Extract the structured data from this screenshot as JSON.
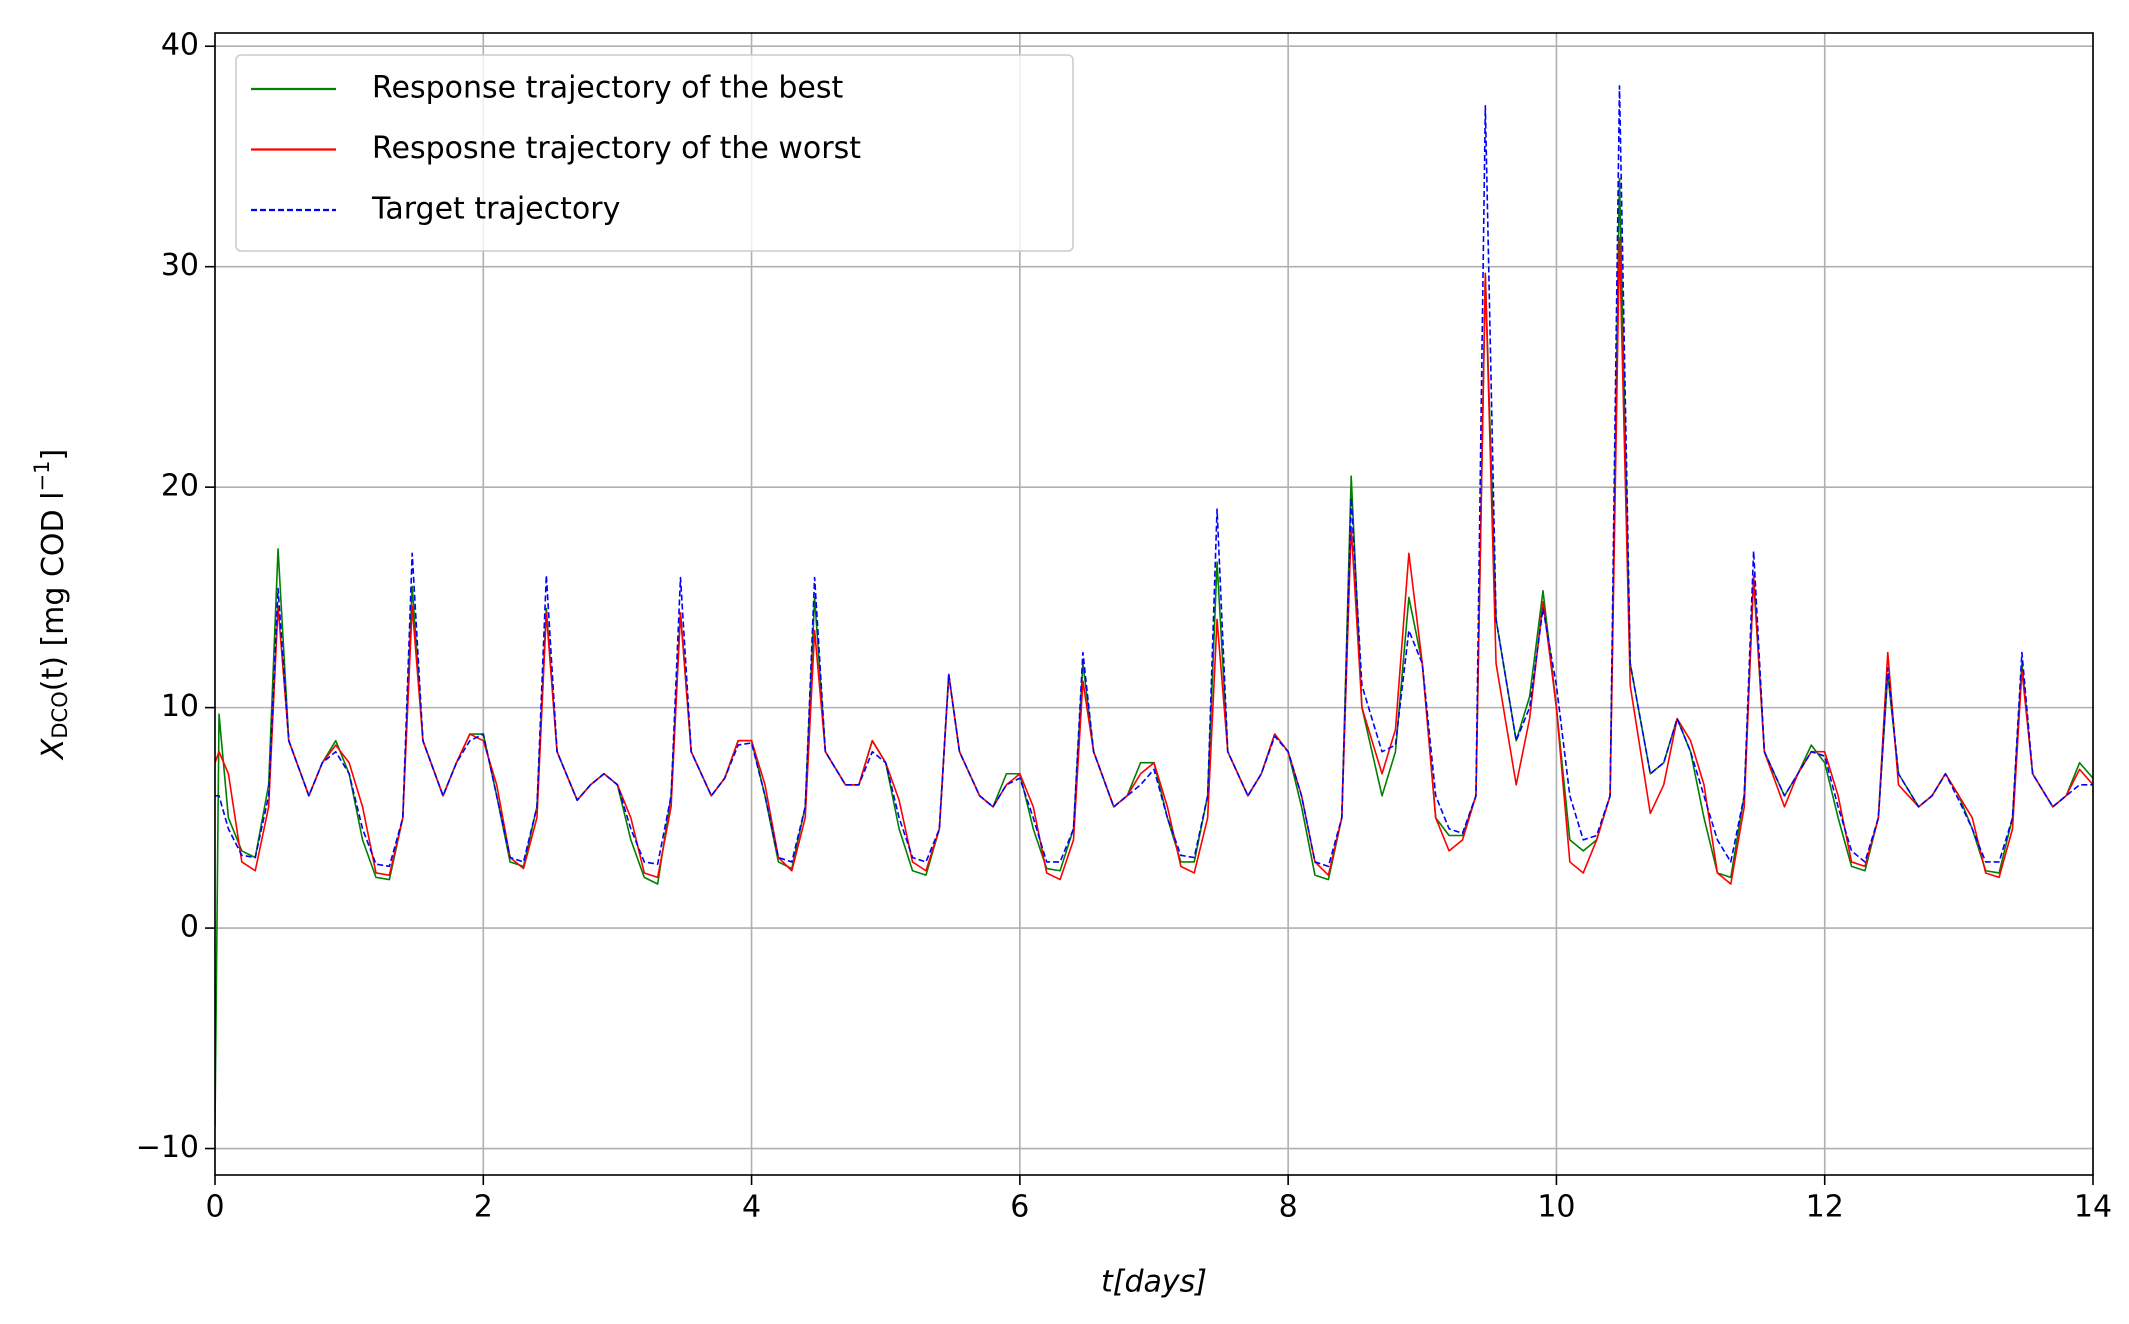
{
  "chart_data": {
    "type": "line",
    "xlabel": "t[days]",
    "ylabel": {
      "main": "X",
      "sub": "DCO",
      "rest": "(t) [mg COD l",
      "sup": "−1",
      "end": "]"
    },
    "xlim": [
      0,
      14
    ],
    "ylim": [
      -11.2,
      40.6
    ],
    "xticks": [
      0,
      2,
      4,
      6,
      8,
      10,
      12,
      14
    ],
    "yticks": [
      {
        "value": -10,
        "label": "−10"
      },
      0,
      10,
      20,
      30,
      40
    ],
    "grid": true,
    "legend": "upper left",
    "x": [
      0,
      0.03,
      0.1,
      0.2,
      0.3,
      0.4,
      0.47,
      0.55,
      0.7,
      0.8,
      0.9,
      1,
      1.1,
      1.2,
      1.3,
      1.4,
      1.47,
      1.55,
      1.7,
      1.8,
      1.9,
      2,
      2.1,
      2.2,
      2.3,
      2.4,
      2.47,
      2.55,
      2.7,
      2.8,
      2.9,
      3,
      3.1,
      3.2,
      3.3,
      3.4,
      3.47,
      3.55,
      3.7,
      3.8,
      3.9,
      4,
      4.1,
      4.2,
      4.3,
      4.4,
      4.47,
      4.55,
      4.7,
      4.8,
      4.9,
      5,
      5.1,
      5.2,
      5.3,
      5.4,
      5.47,
      5.55,
      5.7,
      5.8,
      5.9,
      6,
      6.1,
      6.2,
      6.3,
      6.4,
      6.47,
      6.55,
      6.7,
      6.8,
      6.9,
      7,
      7.1,
      7.2,
      7.3,
      7.4,
      7.47,
      7.55,
      7.7,
      7.8,
      7.9,
      8,
      8.1,
      8.2,
      8.3,
      8.4,
      8.47,
      8.55,
      8.7,
      8.8,
      8.9,
      9,
      9.1,
      9.2,
      9.3,
      9.4,
      9.47,
      9.55,
      9.7,
      9.8,
      9.9,
      10,
      10.1,
      10.2,
      10.3,
      10.4,
      10.47,
      10.55,
      10.7,
      10.8,
      10.9,
      11,
      11.1,
      11.2,
      11.3,
      11.4,
      11.47,
      11.55,
      11.7,
      11.8,
      11.9,
      12,
      12.1,
      12.2,
      12.3,
      12.4,
      12.47,
      12.55,
      12.7,
      12.8,
      12.9,
      13,
      13.1,
      13.2,
      13.3,
      13.4,
      13.47,
      13.55,
      13.7,
      13.8,
      13.9,
      14
    ],
    "series": [
      {
        "name": "Response trajectory of the best",
        "color": "#008000",
        "linestyle": "solid",
        "values": [
          -9,
          9.7,
          5,
          3.5,
          3.2,
          6.5,
          17.2,
          8.5,
          6,
          7.5,
          8.5,
          7,
          4,
          2.3,
          2.2,
          5,
          15.5,
          8.5,
          6,
          7.5,
          8.8,
          8.8,
          6,
          3,
          2.8,
          5.5,
          14.5,
          8,
          5.8,
          6.5,
          7,
          6.5,
          4,
          2.3,
          2,
          6,
          14.3,
          8,
          6,
          6.8,
          8.5,
          8.5,
          6,
          3,
          2.7,
          5.5,
          15,
          8,
          6.5,
          6.5,
          8.5,
          7.5,
          4.5,
          2.6,
          2.4,
          4.5,
          11.5,
          8,
          6,
          5.5,
          7,
          7,
          4.5,
          2.7,
          2.6,
          4.5,
          12,
          8,
          5.5,
          6,
          7.5,
          7.5,
          5,
          3,
          3,
          6,
          16.6,
          8,
          6,
          7,
          8.8,
          8,
          5.5,
          2.4,
          2.2,
          5,
          20.5,
          10,
          6,
          8,
          15,
          12,
          5,
          4.2,
          4.2,
          6,
          29.6,
          14,
          8.5,
          10.5,
          15.3,
          10,
          4,
          3.5,
          4,
          6,
          34,
          12,
          7,
          7.5,
          9.5,
          8,
          5,
          2.5,
          2.3,
          6,
          15.8,
          8,
          6,
          7,
          8.3,
          7.5,
          5,
          2.8,
          2.6,
          5,
          11.5,
          7,
          5.5,
          6,
          7,
          6,
          4.5,
          2.6,
          2.5,
          5,
          12,
          7,
          5.5,
          6,
          7.5,
          6.8
        ]
      },
      {
        "name": "Resposne trajectory of the worst",
        "color": "#ff0000",
        "linestyle": "solid",
        "values": [
          7.5,
          8,
          7,
          3,
          2.6,
          5.5,
          14.6,
          8.5,
          6,
          7.5,
          8.3,
          7.5,
          5.5,
          2.5,
          2.4,
          5,
          14.6,
          8.5,
          6,
          7.5,
          8.8,
          8.5,
          6.5,
          3.2,
          2.7,
          5,
          14.3,
          8,
          5.8,
          6.5,
          7,
          6.5,
          5,
          2.5,
          2.3,
          5.5,
          14.3,
          8,
          6,
          6.8,
          8.5,
          8.5,
          6.5,
          3.2,
          2.6,
          5,
          13.5,
          8,
          6.5,
          6.5,
          8.5,
          7.5,
          5.8,
          3,
          2.6,
          4.5,
          11.5,
          8,
          6,
          5.5,
          6.5,
          7,
          5.5,
          2.5,
          2.2,
          4,
          11.2,
          8,
          5.5,
          6,
          7,
          7.5,
          5.5,
          2.8,
          2.5,
          5,
          14,
          8,
          6,
          7,
          8.8,
          8,
          6,
          3,
          2.4,
          5,
          18.2,
          10,
          7,
          9,
          17,
          12,
          5,
          3.5,
          4,
          6,
          29.7,
          12,
          6.5,
          9.5,
          14.8,
          10,
          3,
          2.5,
          4,
          6,
          31.3,
          11,
          5.2,
          6.5,
          9.5,
          8.5,
          6.5,
          2.5,
          2,
          5.5,
          16,
          8,
          5.5,
          7,
          8,
          8,
          6,
          3,
          2.8,
          5,
          12.5,
          6.5,
          5.5,
          6,
          7,
          6,
          5,
          2.5,
          2.3,
          4.5,
          11.7,
          7,
          5.5,
          6,
          7.2,
          6.5
        ]
      },
      {
        "name": "Target trajectory",
        "color": "#0000ff",
        "linestyle": "dashed",
        "values": [
          6,
          6,
          4.5,
          3.3,
          3.2,
          6,
          15.4,
          8.5,
          6,
          7.5,
          8,
          7,
          4.5,
          2.9,
          2.8,
          5,
          17,
          8.5,
          6,
          7.5,
          8.5,
          8.8,
          6,
          3.2,
          3,
          5.5,
          16,
          8,
          5.8,
          6.5,
          7,
          6.5,
          4.5,
          3,
          2.9,
          6,
          15.9,
          8,
          6,
          6.8,
          8.3,
          8.4,
          6,
          3.2,
          3,
          5.5,
          15.9,
          8,
          6.5,
          6.5,
          8,
          7.5,
          5,
          3.2,
          3,
          4.5,
          11.5,
          8,
          6,
          5.5,
          6.5,
          6.8,
          5,
          3,
          3,
          4.5,
          12.5,
          8,
          5.5,
          6,
          6.5,
          7.2,
          5,
          3.3,
          3.2,
          6,
          19,
          8,
          6,
          7,
          8.7,
          8,
          6,
          3,
          2.8,
          5,
          19.5,
          11,
          8,
          8.3,
          13.5,
          12,
          6,
          4.5,
          4.3,
          6,
          37.3,
          14,
          8.5,
          10,
          14.5,
          11,
          6,
          4,
          4.2,
          6,
          38.2,
          12,
          7,
          7.5,
          9.5,
          8,
          6,
          4,
          3,
          6,
          17.1,
          8,
          6,
          7,
          8,
          7.8,
          5.5,
          3.5,
          3,
          5,
          11.8,
          7,
          5.5,
          6,
          7,
          5.8,
          4.5,
          3,
          3,
          5,
          12.5,
          7,
          5.5,
          6,
          6.5,
          6.5
        ]
      }
    ]
  }
}
